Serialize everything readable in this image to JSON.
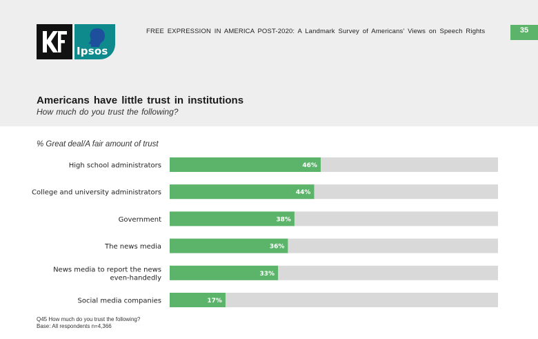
{
  "header": {
    "title": "FREE EXPRESSION IN AMERICA POST-2020: A Landmark Survey of Americans’ Views on Speech Rights",
    "page_number": "35",
    "logos": {
      "kf": "KF",
      "ipsos": "Ipsos"
    }
  },
  "slide": {
    "title": "Americans have little trust in institutions",
    "subtitle": "How much do you trust the following?",
    "metric_label": "% Great deal/A fair amount of trust"
  },
  "footnote": {
    "question": "Q45 How much do you trust the following?",
    "base": "Base: All respondents n=4,366"
  },
  "colors": {
    "bar": "#5cb46a",
    "track": "#d9d9d9",
    "accent": "#5cb46a"
  },
  "chart_data": {
    "type": "bar",
    "orientation": "horizontal",
    "title": "Americans have little trust in institutions",
    "subtitle": "How much do you trust the following?",
    "value_label": "% Great deal/A fair amount of trust",
    "unit": "%",
    "xlim": [
      0,
      100
    ],
    "categories": [
      [
        "High school administrators"
      ],
      [
        "College and university administrators"
      ],
      [
        "Government"
      ],
      [
        "The news media"
      ],
      [
        "News media to report the news",
        "even-handedly"
      ],
      [
        "Social media companies"
      ]
    ],
    "values": [
      46,
      44,
      38,
      36,
      33,
      17
    ],
    "data_labels": [
      "46%",
      "44%",
      "38%",
      "36%",
      "33%",
      "17%"
    ]
  }
}
